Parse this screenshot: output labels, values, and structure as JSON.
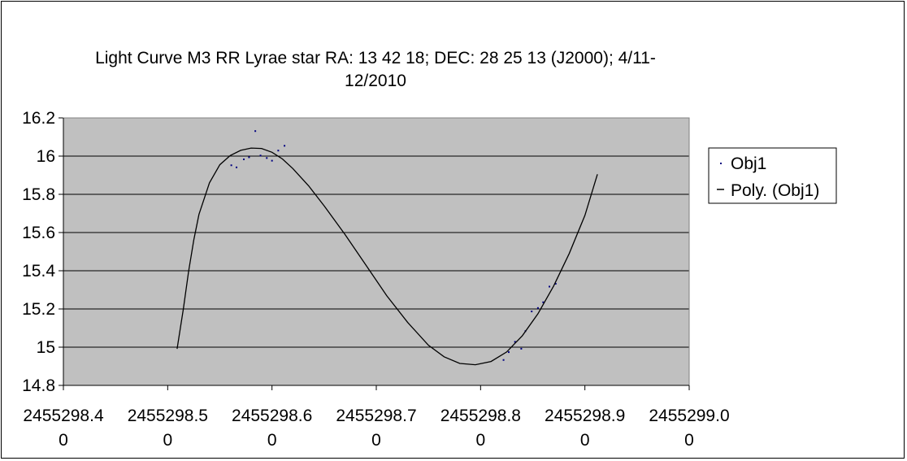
{
  "chart_data": {
    "type": "scatter",
    "title_lines": [
      "Light Curve M3 RR Lyrae star RA: 13 42 18; DEC: 28 25 13 (J2000); 4/11-",
      "12/2010"
    ],
    "xlabel": "",
    "ylabel": "",
    "xlim": [
      2455298.4,
      2455299.0
    ],
    "ylim": [
      14.8,
      16.2
    ],
    "x_ticks": [
      2455298.4,
      2455298.5,
      2455298.6,
      2455298.7,
      2455298.8,
      2455298.9,
      2455299.0
    ],
    "x_tick_labels": [
      [
        "2455298.4",
        "0"
      ],
      [
        "2455298.5",
        "0"
      ],
      [
        "2455298.6",
        "0"
      ],
      [
        "2455298.7",
        "0"
      ],
      [
        "2455298.8",
        "0"
      ],
      [
        "2455298.9",
        "0"
      ],
      [
        "2455299.0",
        "0"
      ]
    ],
    "y_ticks": [
      14.8,
      15,
      15.2,
      15.4,
      15.6,
      15.8,
      16,
      16.2
    ],
    "y_tick_labels": [
      "14.8",
      "15",
      "15.2",
      "15.4",
      "15.6",
      "15.8",
      "16",
      "16.2"
    ],
    "grid": "horizontal",
    "plot_background": "#c0c0c0",
    "legend_position": "right",
    "legend": [
      {
        "label": "Obj1",
        "marker": "dot",
        "color": "#000080"
      },
      {
        "label": "Poly. (Obj1)",
        "marker": "line",
        "color": "#000000"
      }
    ],
    "series": [
      {
        "name": "Obj1",
        "kind": "points",
        "color": "#000080",
        "points": [
          [
            2455298.561,
            15.952
          ],
          [
            2455298.566,
            15.941
          ],
          [
            2455298.573,
            15.983
          ],
          [
            2455298.578,
            15.994
          ],
          [
            2455298.584,
            16.131
          ],
          [
            2455298.589,
            16.003
          ],
          [
            2455298.595,
            15.99
          ],
          [
            2455298.6,
            15.976
          ],
          [
            2455298.606,
            16.029
          ],
          [
            2455298.612,
            16.054
          ],
          [
            2455298.822,
            14.933
          ],
          [
            2455298.827,
            14.974
          ],
          [
            2455298.833,
            15.028
          ],
          [
            2455298.839,
            14.992
          ],
          [
            2455298.843,
            15.084
          ],
          [
            2455298.849,
            15.187
          ],
          [
            2455298.855,
            15.205
          ],
          [
            2455298.86,
            15.235
          ],
          [
            2455298.866,
            15.317
          ],
          [
            2455298.872,
            15.332
          ]
        ]
      },
      {
        "name": "Poly. (Obj1)",
        "kind": "trendline",
        "color": "#000000",
        "points": [
          [
            2455298.509,
            14.991
          ],
          [
            2455298.515,
            15.2
          ],
          [
            2455298.52,
            15.395
          ],
          [
            2455298.525,
            15.56
          ],
          [
            2455298.53,
            15.695
          ],
          [
            2455298.54,
            15.86
          ],
          [
            2455298.55,
            15.955
          ],
          [
            2455298.56,
            16.003
          ],
          [
            2455298.57,
            16.03
          ],
          [
            2455298.58,
            16.042
          ],
          [
            2455298.59,
            16.04
          ],
          [
            2455298.6,
            16.02
          ],
          [
            2455298.61,
            15.985
          ],
          [
            2455298.62,
            15.935
          ],
          [
            2455298.635,
            15.845
          ],
          [
            2455298.65,
            15.74
          ],
          [
            2455298.67,
            15.59
          ],
          [
            2455298.69,
            15.43
          ],
          [
            2455298.71,
            15.27
          ],
          [
            2455298.73,
            15.13
          ],
          [
            2455298.75,
            15.01
          ],
          [
            2455298.765,
            14.95
          ],
          [
            2455298.78,
            14.915
          ],
          [
            2455298.795,
            14.908
          ],
          [
            2455298.81,
            14.925
          ],
          [
            2455298.825,
            14.975
          ],
          [
            2455298.84,
            15.06
          ],
          [
            2455298.855,
            15.175
          ],
          [
            2455298.87,
            15.32
          ],
          [
            2455298.885,
            15.49
          ],
          [
            2455298.9,
            15.69
          ],
          [
            2455298.912,
            15.905
          ]
        ]
      }
    ]
  }
}
